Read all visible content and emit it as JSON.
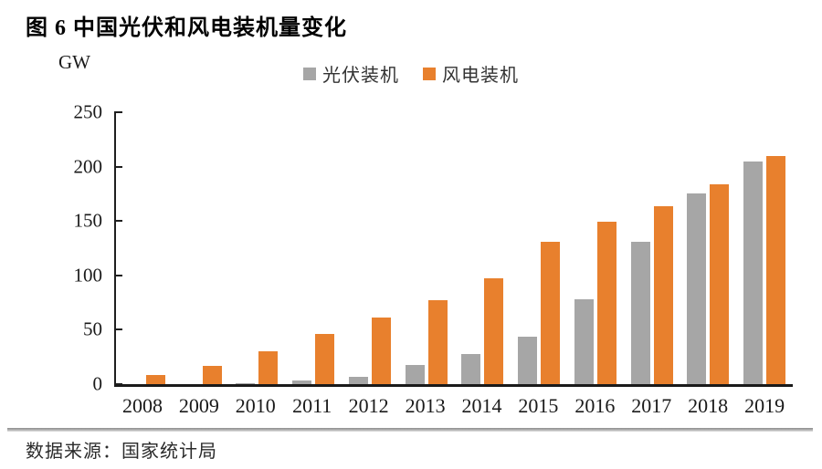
{
  "title": "图 6 中国光伏和风电装机量变化",
  "unit_label": "GW",
  "source": "数据来源：国家统计局",
  "colors": {
    "pv_gray": "#A6A6A6",
    "wind_orange": "#E8802D",
    "axis": "#1F1F1F"
  },
  "chart_data": {
    "type": "bar",
    "title": "图 6 中国光伏和风电装机量变化",
    "xlabel": "",
    "ylabel": "GW",
    "ylim": [
      0,
      250
    ],
    "yticks": [
      0,
      50,
      100,
      150,
      200,
      250
    ],
    "grid": false,
    "legend_position": "top-center",
    "categories": [
      "2008",
      "2009",
      "2010",
      "2011",
      "2012",
      "2013",
      "2014",
      "2015",
      "2016",
      "2017",
      "2018",
      "2019"
    ],
    "series": [
      {
        "name": "光伏装机",
        "color": "#A6A6A6",
        "values": [
          0,
          0,
          1,
          3,
          7,
          18,
          28,
          44,
          78,
          131,
          175,
          205
        ]
      },
      {
        "name": "风电装机",
        "color": "#E8802D",
        "values": [
          8,
          17,
          30,
          46,
          61,
          77,
          97,
          131,
          149,
          164,
          184,
          210
        ]
      }
    ]
  }
}
